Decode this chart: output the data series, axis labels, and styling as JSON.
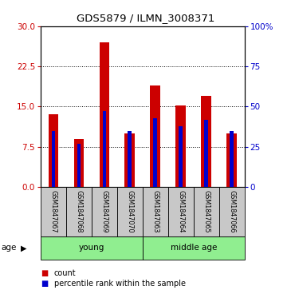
{
  "title": "GDS5879 / ILMN_3008371",
  "samples": [
    "GSM1847067",
    "GSM1847068",
    "GSM1847069",
    "GSM1847070",
    "GSM1847063",
    "GSM1847064",
    "GSM1847065",
    "GSM1847066"
  ],
  "count_values": [
    13.5,
    9.0,
    27.0,
    10.0,
    19.0,
    15.2,
    17.0,
    10.0
  ],
  "percentile_values": [
    35,
    27,
    47,
    35,
    43,
    38,
    42,
    35
  ],
  "group_color": "#90EE90",
  "bar_color_red": "#CC0000",
  "bar_color_blue": "#0000CC",
  "left_ylim": [
    0,
    30
  ],
  "left_yticks": [
    0,
    7.5,
    15,
    22.5,
    30
  ],
  "right_ylim": [
    0,
    100
  ],
  "right_yticks": [
    0,
    25,
    50,
    75,
    100
  ],
  "right_yticklabels": [
    "0",
    "25",
    "50",
    "75",
    "100%"
  ],
  "xlabel_color_left": "#CC0000",
  "xlabel_color_right": "#0000CC",
  "red_bar_width": 0.4,
  "blue_bar_width": 0.15,
  "sample_box_color": "#C8C8C8",
  "age_label": "age",
  "legend_count": "count",
  "legend_percentile": "percentile rank within the sample",
  "group_ranges": [
    [
      0,
      3,
      "young"
    ],
    [
      4,
      7,
      "middle age"
    ]
  ]
}
